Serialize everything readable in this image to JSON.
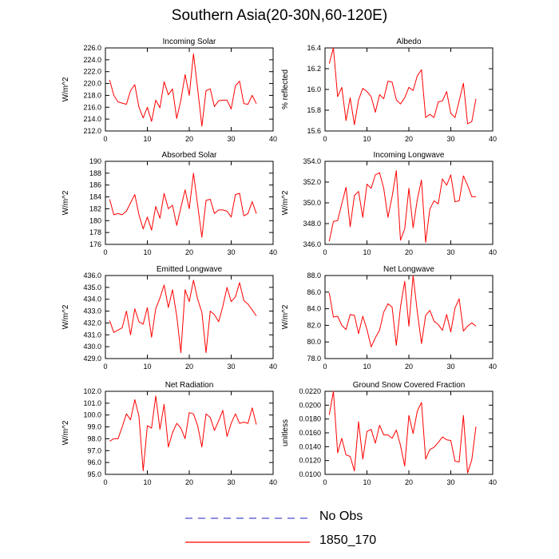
{
  "title": "Southern Asia(20-30N,60-120E)",
  "colors": {
    "model": "#ff0000",
    "obs": "#4a4ad0",
    "axis": "#000000"
  },
  "legend": [
    {
      "label": "No Obs",
      "style": "dashed",
      "color": "#4a4ad0"
    },
    {
      "label": "1850_170",
      "style": "solid",
      "color": "#ff0000"
    }
  ],
  "chart_data": [
    {
      "type": "line",
      "title": "Incoming Solar",
      "ylabel": "W/m^2",
      "xlim": [
        0,
        40
      ],
      "xticks": [
        0,
        10,
        20,
        30,
        40
      ],
      "ylim": [
        212,
        226
      ],
      "yticks": [
        212,
        214,
        216,
        218,
        220,
        222,
        224,
        226
      ],
      "ytick_decimals": 1,
      "x": [
        1,
        2,
        3,
        4,
        5,
        6,
        7,
        8,
        9,
        10,
        11,
        12,
        13,
        14,
        15,
        16,
        17,
        18,
        19,
        20,
        21,
        22,
        23,
        24,
        25,
        26,
        27,
        28,
        29,
        30,
        31,
        32,
        33,
        34,
        35,
        36
      ],
      "series": [
        {
          "name": "1850_170",
          "values": [
            220.6,
            218.0,
            216.9,
            216.7,
            216.5,
            218.8,
            219.8,
            216.0,
            214.2,
            216.0,
            213.6,
            217.2,
            215.9,
            220.3,
            218.1,
            219.1,
            214.1,
            217.2,
            221.5,
            218.0,
            225.0,
            219.1,
            212.8,
            218.8,
            219.1,
            216.1,
            217.1,
            217.2,
            217.2,
            215.7,
            219.6,
            220.4,
            216.6,
            216.5,
            218.0,
            216.6
          ]
        }
      ]
    },
    {
      "type": "line",
      "title": "Albedo",
      "ylabel": "% reflected",
      "xlim": [
        0,
        40
      ],
      "xticks": [
        0,
        10,
        20,
        30,
        40
      ],
      "ylim": [
        15.6,
        16.4
      ],
      "yticks": [
        15.6,
        15.8,
        16.0,
        16.2,
        16.4
      ],
      "ytick_decimals": 1,
      "x": [
        1,
        2,
        3,
        4,
        5,
        6,
        7,
        8,
        9,
        10,
        11,
        12,
        13,
        14,
        15,
        16,
        17,
        18,
        19,
        20,
        21,
        22,
        23,
        24,
        25,
        26,
        27,
        28,
        29,
        30,
        31,
        32,
        33,
        34,
        35,
        36
      ],
      "series": [
        {
          "name": "1850_170",
          "values": [
            16.25,
            16.4,
            15.93,
            16.02,
            15.7,
            15.92,
            15.66,
            15.9,
            16.01,
            15.98,
            15.93,
            15.78,
            15.95,
            15.91,
            16.08,
            16.07,
            15.9,
            15.86,
            15.92,
            16.02,
            15.99,
            16.13,
            16.19,
            15.73,
            15.76,
            15.73,
            15.88,
            15.89,
            15.98,
            15.77,
            15.73,
            15.89,
            16.06,
            15.67,
            15.69,
            15.91
          ]
        }
      ]
    },
    {
      "type": "line",
      "title": "Absorbed Solar",
      "ylabel": "W/m^2",
      "xlim": [
        0,
        40
      ],
      "xticks": [
        0,
        10,
        20,
        30,
        40
      ],
      "ylim": [
        176,
        190
      ],
      "yticks": [
        176,
        178,
        180,
        182,
        184,
        186,
        188,
        190
      ],
      "ytick_decimals": 0,
      "x": [
        1,
        2,
        3,
        4,
        5,
        6,
        7,
        8,
        9,
        10,
        11,
        12,
        13,
        14,
        15,
        16,
        17,
        18,
        19,
        20,
        21,
        22,
        23,
        24,
        25,
        26,
        27,
        28,
        29,
        30,
        31,
        32,
        33,
        34,
        35,
        36
      ],
      "series": [
        {
          "name": "1850_170",
          "values": [
            183.6,
            181.0,
            181.2,
            181.0,
            181.6,
            183.0,
            184.4,
            181.0,
            178.6,
            180.6,
            178.4,
            182.4,
            180.4,
            184.6,
            182.0,
            182.6,
            179.2,
            182.2,
            185.2,
            182.0,
            188.0,
            182.6,
            177.2,
            183.4,
            183.6,
            181.2,
            181.8,
            181.8,
            181.6,
            180.6,
            184.4,
            184.6,
            180.8,
            181.2,
            183.2,
            181.2
          ]
        }
      ]
    },
    {
      "type": "line",
      "title": "Incoming Longwave",
      "ylabel": "W/m^2",
      "xlim": [
        0,
        40
      ],
      "xticks": [
        0,
        10,
        20,
        30,
        40
      ],
      "ylim": [
        346,
        354
      ],
      "yticks": [
        346,
        348,
        350,
        352,
        354
      ],
      "ytick_decimals": 1,
      "x": [
        1,
        2,
        3,
        4,
        5,
        6,
        7,
        8,
        9,
        10,
        11,
        12,
        13,
        14,
        15,
        16,
        17,
        18,
        19,
        20,
        21,
        22,
        23,
        24,
        25,
        26,
        27,
        28,
        29,
        30,
        31,
        32,
        33,
        34,
        35,
        36
      ],
      "series": [
        {
          "name": "1850_170",
          "values": [
            346.3,
            348.2,
            348.3,
            349.9,
            351.5,
            347.7,
            350.7,
            351.1,
            348.6,
            351.8,
            351.4,
            352.7,
            352.9,
            351.4,
            348.6,
            350.6,
            353.1,
            346.4,
            347.5,
            351.4,
            347.6,
            350.3,
            352.2,
            346.2,
            349.4,
            350.2,
            349.9,
            352.3,
            351.7,
            352.7,
            350.1,
            350.2,
            352.6,
            351.7,
            350.6,
            350.6
          ]
        }
      ]
    },
    {
      "type": "line",
      "title": "Emitted Longwave",
      "ylabel": "W/m^2",
      "xlim": [
        0,
        40
      ],
      "xticks": [
        0,
        10,
        20,
        30,
        40
      ],
      "ylim": [
        429,
        436
      ],
      "yticks": [
        429,
        430,
        431,
        432,
        433,
        434,
        435,
        436
      ],
      "ytick_decimals": 1,
      "x": [
        1,
        2,
        3,
        4,
        5,
        6,
        7,
        8,
        9,
        10,
        11,
        12,
        13,
        14,
        15,
        16,
        17,
        18,
        19,
        20,
        21,
        22,
        23,
        24,
        25,
        26,
        27,
        28,
        29,
        30,
        31,
        32,
        33,
        34,
        35,
        36
      ],
      "series": [
        {
          "name": "1850_170",
          "values": [
            432.2,
            431.2,
            431.4,
            431.6,
            433.0,
            431.0,
            433.2,
            432.1,
            431.9,
            433.3,
            430.8,
            433.2,
            434.1,
            435.2,
            433.3,
            434.8,
            432.6,
            429.5,
            434.8,
            433.8,
            435.6,
            434.0,
            432.9,
            429.5,
            433.0,
            432.7,
            432.1,
            433.4,
            435.0,
            433.8,
            434.2,
            435.4,
            433.9,
            433.6,
            433.1,
            432.6
          ]
        }
      ]
    },
    {
      "type": "line",
      "title": "Net Longwave",
      "ylabel": "W/m^2",
      "xlim": [
        0,
        40
      ],
      "xticks": [
        0,
        10,
        20,
        30,
        40
      ],
      "ylim": [
        78,
        88
      ],
      "yticks": [
        78,
        80,
        82,
        84,
        86,
        88
      ],
      "ytick_decimals": 1,
      "x": [
        1,
        2,
        3,
        4,
        5,
        6,
        7,
        8,
        9,
        10,
        11,
        12,
        13,
        14,
        15,
        16,
        17,
        18,
        19,
        20,
        21,
        22,
        23,
        24,
        25,
        26,
        27,
        28,
        29,
        30,
        31,
        32,
        33,
        34,
        35,
        36
      ],
      "series": [
        {
          "name": "1850_170",
          "values": [
            85.9,
            83.0,
            83.1,
            82.0,
            81.5,
            83.3,
            83.2,
            81.0,
            83.1,
            81.5,
            79.4,
            80.5,
            81.4,
            83.6,
            84.6,
            84.2,
            79.6,
            84.2,
            87.3,
            81.9,
            88.0,
            83.7,
            79.8,
            83.2,
            83.8,
            82.5,
            82.1,
            81.4,
            83.3,
            81.2,
            84.1,
            85.2,
            81.3,
            81.9,
            82.3,
            81.9
          ]
        }
      ]
    },
    {
      "type": "line",
      "title": "Net Radiation",
      "ylabel": "W/m^2",
      "xlim": [
        0,
        40
      ],
      "xticks": [
        0,
        10,
        20,
        30,
        40
      ],
      "ylim": [
        95,
        102
      ],
      "yticks": [
        95,
        96,
        97,
        98,
        99,
        100,
        101,
        102
      ],
      "ytick_decimals": 1,
      "x": [
        1,
        2,
        3,
        4,
        5,
        6,
        7,
        8,
        9,
        10,
        11,
        12,
        13,
        14,
        15,
        16,
        17,
        18,
        19,
        20,
        21,
        22,
        23,
        24,
        25,
        26,
        27,
        28,
        29,
        30,
        31,
        32,
        33,
        34,
        35,
        36
      ],
      "series": [
        {
          "name": "1850_170",
          "values": [
            97.8,
            98.0,
            98.0,
            99.0,
            100.1,
            99.6,
            101.3,
            99.9,
            95.3,
            99.1,
            98.9,
            101.6,
            98.8,
            100.9,
            97.3,
            98.5,
            99.3,
            98.9,
            98.0,
            100.2,
            100.1,
            99.1,
            97.3,
            100.1,
            99.8,
            98.7,
            99.5,
            100.4,
            98.2,
            99.3,
            100.1,
            99.3,
            99.4,
            99.3,
            100.6,
            99.2
          ]
        }
      ]
    },
    {
      "type": "line",
      "title": "Ground Snow Covered Fraction",
      "ylabel": "unitless",
      "xlim": [
        0,
        40
      ],
      "xticks": [
        0,
        10,
        20,
        30,
        40
      ],
      "ylim": [
        0.01,
        0.022
      ],
      "yticks": [
        0.01,
        0.012,
        0.014,
        0.016,
        0.018,
        0.02,
        0.022
      ],
      "ytick_decimals": 4,
      "x": [
        1,
        2,
        3,
        4,
        5,
        6,
        7,
        8,
        9,
        10,
        11,
        12,
        13,
        14,
        15,
        16,
        17,
        18,
        19,
        20,
        21,
        22,
        23,
        24,
        25,
        26,
        27,
        28,
        29,
        30,
        31,
        32,
        33,
        34,
        35,
        36
      ],
      "series": [
        {
          "name": "1850_170",
          "values": [
            0.0186,
            0.022,
            0.0131,
            0.0152,
            0.0128,
            0.0126,
            0.0105,
            0.0176,
            0.0122,
            0.0162,
            0.0165,
            0.0145,
            0.0171,
            0.0157,
            0.0157,
            0.0152,
            0.0164,
            0.0142,
            0.0112,
            0.0185,
            0.0159,
            0.0191,
            0.0204,
            0.0122,
            0.0136,
            0.0139,
            0.0146,
            0.0154,
            0.015,
            0.0149,
            0.0119,
            0.0118,
            0.0185,
            0.0102,
            0.0121,
            0.0169
          ]
        }
      ]
    }
  ]
}
